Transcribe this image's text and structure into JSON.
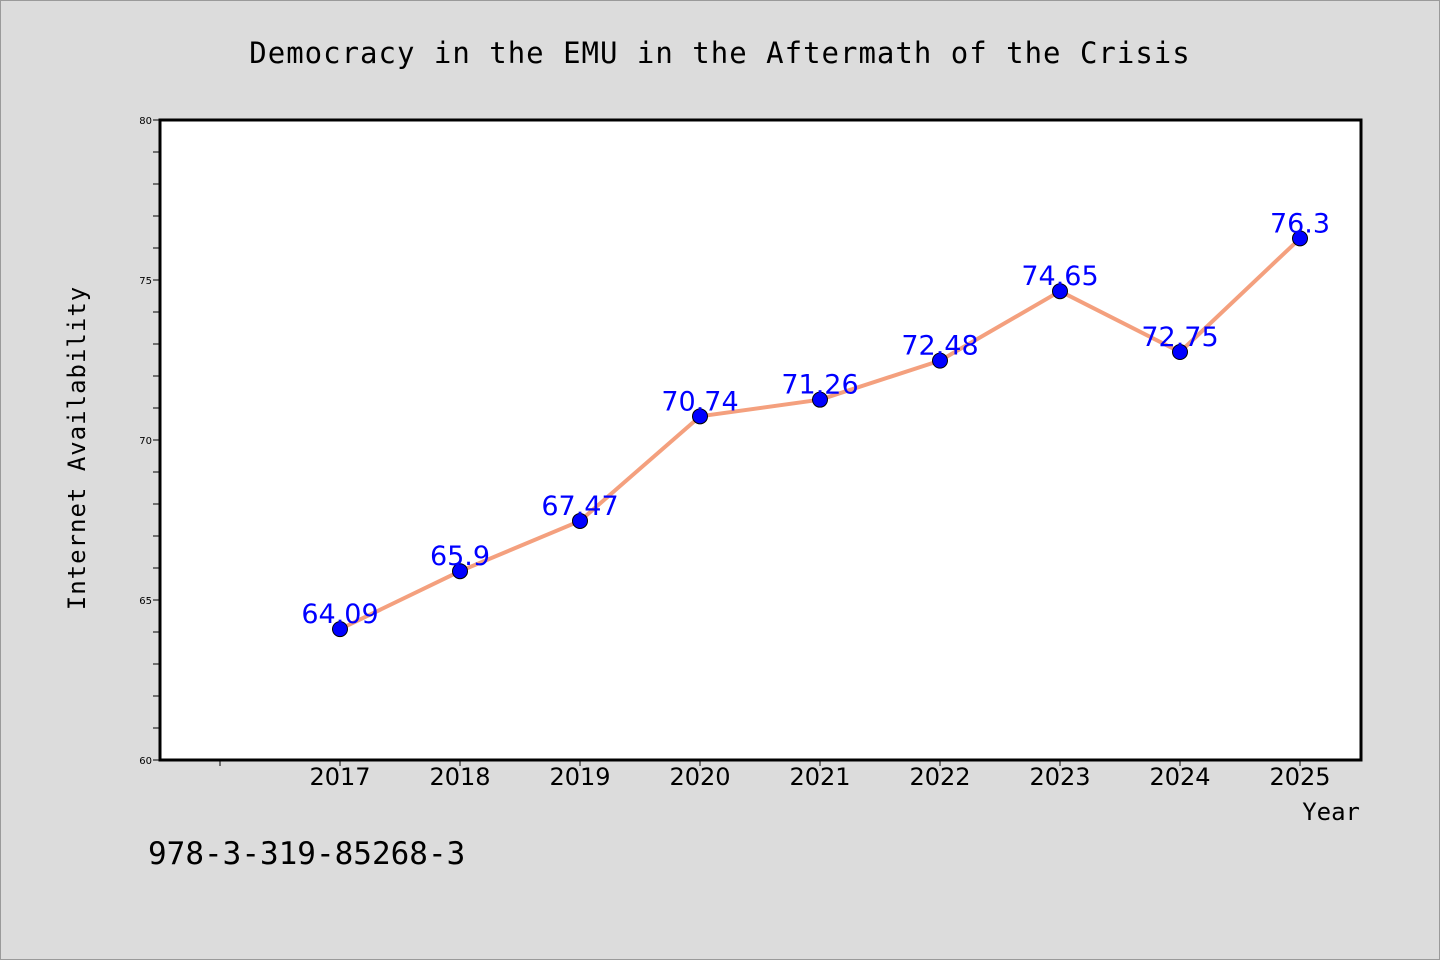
{
  "chart_data": {
    "type": "line",
    "title": "Democracy in the EMU in the Aftermath of the Crisis",
    "xlabel": "Year",
    "ylabel": "Internet Availability",
    "categories": [
      "2017",
      "2018",
      "2019",
      "2020",
      "2021",
      "2022",
      "2023",
      "2024",
      "2025"
    ],
    "series": [
      {
        "values": [
          64.09,
          65.9,
          67.47,
          70.74,
          71.26,
          72.48,
          74.65,
          72.75,
          76.3
        ],
        "data_labels": [
          "64.09",
          "65.9",
          "67.47",
          "70.74",
          "71.26",
          "72.48",
          "74.65",
          "72.75",
          "76.3"
        ]
      }
    ],
    "ylim": [
      60,
      80
    ],
    "yticks": [
      "60",
      "65",
      "70",
      "75",
      "80"
    ],
    "grid": false,
    "legend": "none",
    "colors": {
      "line": "#f4a07e",
      "marker": "#0000ff",
      "data_label": "#0000ff",
      "plot_background": "#ffffff",
      "figure_background": "#dcdcdc"
    }
  },
  "footer": {
    "isbn": "978-3-319-85268-3"
  }
}
